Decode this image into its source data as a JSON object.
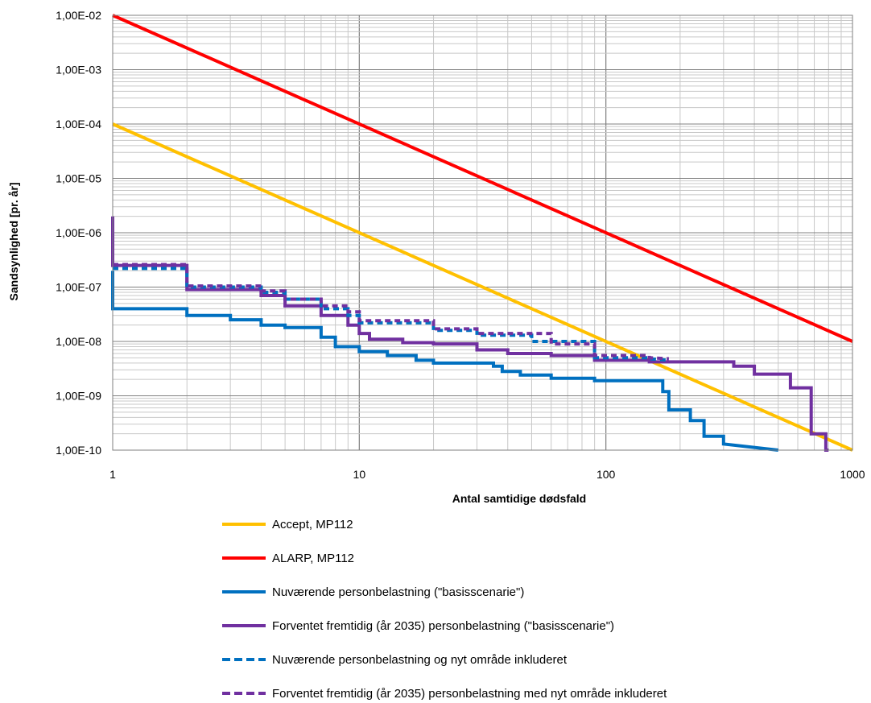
{
  "chart_data": {
    "type": "line",
    "xlabel": "Antal samtidige dødsfald",
    "ylabel": "Sandsynlighed  [pr. år]",
    "x_scale": "log",
    "y_scale": "log",
    "xlim": [
      1,
      1000
    ],
    "ylim": [
      1e-10,
      0.01
    ],
    "grid": true,
    "legend_position": "bottom",
    "x_ticks": [
      {
        "value": 1,
        "label": "1"
      },
      {
        "value": 10,
        "label": "10"
      },
      {
        "value": 100,
        "label": "100"
      },
      {
        "value": 1000,
        "label": "1000"
      }
    ],
    "y_ticks": [
      {
        "value": 0.01,
        "label": "1,00E-02"
      },
      {
        "value": 0.001,
        "label": "1,00E-03"
      },
      {
        "value": 0.0001,
        "label": "1,00E-04"
      },
      {
        "value": 1e-05,
        "label": "1,00E-05"
      },
      {
        "value": 1e-06,
        "label": "1,00E-06"
      },
      {
        "value": 1e-07,
        "label": "1,00E-07"
      },
      {
        "value": 1e-08,
        "label": "1,00E-08"
      },
      {
        "value": 1e-09,
        "label": "1,00E-09"
      },
      {
        "value": 1e-10,
        "label": "1,00E-10"
      }
    ],
    "series": [
      {
        "name": "Accept, MP112",
        "color": "#FFC000",
        "dashed": false,
        "width": 4,
        "points": [
          [
            1,
            0.0001
          ],
          [
            1000,
            1e-10
          ]
        ]
      },
      {
        "name": "ALARP, MP112",
        "color": "#FF0000",
        "dashed": false,
        "width": 4,
        "points": [
          [
            1,
            0.01
          ],
          [
            1000,
            1e-08
          ]
        ]
      },
      {
        "name": "Nuværende personbelastning (\"basisscenarie\")",
        "color": "#0070C0",
        "dashed": false,
        "width": 4,
        "points": [
          [
            1,
            2e-07
          ],
          [
            1,
            4e-08
          ],
          [
            2,
            4e-08
          ],
          [
            2,
            3e-08
          ],
          [
            3,
            3e-08
          ],
          [
            3,
            2.5e-08
          ],
          [
            4,
            2.5e-08
          ],
          [
            4,
            2e-08
          ],
          [
            5,
            2e-08
          ],
          [
            5,
            1.8e-08
          ],
          [
            7,
            1.8e-08
          ],
          [
            7,
            1.2e-08
          ],
          [
            8,
            1.2e-08
          ],
          [
            8,
            8e-09
          ],
          [
            10,
            8e-09
          ],
          [
            10,
            6.5e-09
          ],
          [
            13,
            6.5e-09
          ],
          [
            13,
            5.5e-09
          ],
          [
            17,
            5.5e-09
          ],
          [
            17,
            4.5e-09
          ],
          [
            20,
            4.5e-09
          ],
          [
            20,
            4e-09
          ],
          [
            35,
            4e-09
          ],
          [
            35,
            3.5e-09
          ],
          [
            38,
            3.5e-09
          ],
          [
            38,
            2.8e-09
          ],
          [
            45,
            2.8e-09
          ],
          [
            45,
            2.4e-09
          ],
          [
            60,
            2.4e-09
          ],
          [
            60,
            2.1e-09
          ],
          [
            90,
            2.1e-09
          ],
          [
            90,
            1.9e-09
          ],
          [
            170,
            1.9e-09
          ],
          [
            170,
            1.2e-09
          ],
          [
            180,
            1.2e-09
          ],
          [
            180,
            5.5e-10
          ],
          [
            220,
            5.5e-10
          ],
          [
            220,
            3.5e-10
          ],
          [
            250,
            3.5e-10
          ],
          [
            250,
            1.8e-10
          ],
          [
            300,
            1.8e-10
          ],
          [
            300,
            1.3e-10
          ],
          [
            500,
            1e-10
          ]
        ]
      },
      {
        "name": "Forventet fremtidig (år 2035) personbelastning (\"basisscenarie\")",
        "color": "#7030A0",
        "dashed": false,
        "width": 4,
        "points": [
          [
            1,
            2e-06
          ],
          [
            1,
            2.5e-07
          ],
          [
            2,
            2.5e-07
          ],
          [
            2,
            9e-08
          ],
          [
            4,
            9e-08
          ],
          [
            4,
            7e-08
          ],
          [
            5,
            7e-08
          ],
          [
            5,
            4.5e-08
          ],
          [
            7,
            4.5e-08
          ],
          [
            7,
            3e-08
          ],
          [
            9,
            3e-08
          ],
          [
            9,
            2e-08
          ],
          [
            10,
            2e-08
          ],
          [
            10,
            1.4e-08
          ],
          [
            11,
            1.4e-08
          ],
          [
            11,
            1.1e-08
          ],
          [
            15,
            1.1e-08
          ],
          [
            15,
            9.5e-09
          ],
          [
            20,
            9.5e-09
          ],
          [
            20,
            9e-09
          ],
          [
            30,
            9e-09
          ],
          [
            30,
            7e-09
          ],
          [
            40,
            7e-09
          ],
          [
            40,
            6e-09
          ],
          [
            60,
            6e-09
          ],
          [
            60,
            5.5e-09
          ],
          [
            90,
            5.5e-09
          ],
          [
            90,
            4.5e-09
          ],
          [
            150,
            4.5e-09
          ],
          [
            150,
            4.2e-09
          ],
          [
            330,
            4.2e-09
          ],
          [
            330,
            3.5e-09
          ],
          [
            400,
            3.5e-09
          ],
          [
            400,
            2.5e-09
          ],
          [
            560,
            2.5e-09
          ],
          [
            560,
            1.4e-09
          ],
          [
            680,
            1.4e-09
          ],
          [
            680,
            2e-10
          ],
          [
            780,
            2e-10
          ],
          [
            780,
            1e-10
          ],
          [
            800,
            1e-10
          ]
        ]
      },
      {
        "name": "Nuværende personbelastning og nyt område inkluderet",
        "color": "#0070C0",
        "dashed": true,
        "width": 4,
        "points": [
          [
            1,
            2.2e-07
          ],
          [
            2,
            2.2e-07
          ],
          [
            2,
            1e-07
          ],
          [
            4,
            1e-07
          ],
          [
            4,
            8e-08
          ],
          [
            5,
            8e-08
          ],
          [
            5,
            6e-08
          ],
          [
            7,
            6e-08
          ],
          [
            7,
            4e-08
          ],
          [
            9,
            4e-08
          ],
          [
            9,
            3e-08
          ],
          [
            10,
            3e-08
          ],
          [
            10,
            2.2e-08
          ],
          [
            20,
            2.2e-08
          ],
          [
            20,
            1.6e-08
          ],
          [
            30,
            1.6e-08
          ],
          [
            30,
            1.3e-08
          ],
          [
            50,
            1.3e-08
          ],
          [
            50,
            1e-08
          ],
          [
            90,
            1e-08
          ],
          [
            90,
            5e-09
          ],
          [
            150,
            5e-09
          ],
          [
            150,
            4.8e-09
          ],
          [
            180,
            4.5e-09
          ]
        ]
      },
      {
        "name": "Forventet fremtidig (år 2035) personbelastning med nyt område inkluderet",
        "color": "#7030A0",
        "dashed": true,
        "width": 4,
        "points": [
          [
            1,
            2.6e-07
          ],
          [
            2,
            2.6e-07
          ],
          [
            2,
            1.05e-07
          ],
          [
            4,
            1.05e-07
          ],
          [
            4,
            8.5e-08
          ],
          [
            5,
            8.5e-08
          ],
          [
            5,
            6e-08
          ],
          [
            7,
            6e-08
          ],
          [
            7,
            4.5e-08
          ],
          [
            9,
            4.5e-08
          ],
          [
            9,
            3.5e-08
          ],
          [
            10,
            3.5e-08
          ],
          [
            10,
            2.4e-08
          ],
          [
            20,
            2.4e-08
          ],
          [
            20,
            1.7e-08
          ],
          [
            30,
            1.7e-08
          ],
          [
            30,
            1.4e-08
          ],
          [
            60,
            1.4e-08
          ],
          [
            60,
            9e-09
          ],
          [
            90,
            9e-09
          ],
          [
            90,
            5.5e-09
          ],
          [
            150,
            5.5e-09
          ],
          [
            150,
            5e-09
          ],
          [
            180,
            4.8e-09
          ]
        ]
      }
    ]
  }
}
